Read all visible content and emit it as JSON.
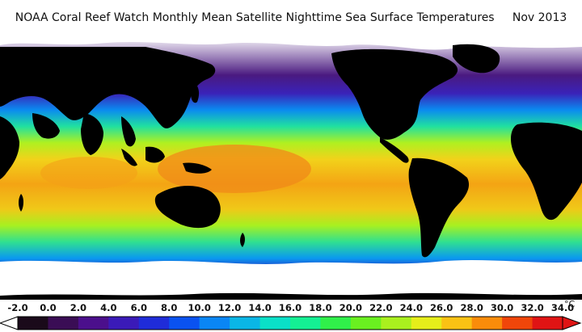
{
  "title": "NOAA Coral Reef Watch Monthly Mean Satellite Nighttime Sea Surface Temperatures     Nov 2013",
  "colorbar": {
    "labels": [
      "-2.0",
      "0.0",
      "2.0",
      "4.0",
      "6.0",
      "8.0",
      "10.0",
      "12.0",
      "14.0",
      "16.0",
      "18.0",
      "20.0",
      "22.0",
      "24.0",
      "26.0",
      "28.0",
      "30.0",
      "32.0",
      "34.0"
    ],
    "unit": "°C",
    "colors": [
      "#ffffff",
      "#1a0a1a",
      "#3a0d55",
      "#4b0f8c",
      "#3a1ab8",
      "#1f2cd9",
      "#0a52f0",
      "#0a86f5",
      "#0ab6e6",
      "#0ae0c8",
      "#14f094",
      "#30f04a",
      "#6af020",
      "#aaf01e",
      "#e6ee1a",
      "#fac214",
      "#fa8c0a",
      "#f0460a",
      "#e01414"
    ],
    "end_left": "#ffffff",
    "end_right": "#e01414"
  },
  "map": {
    "ocean_gradient": [
      {
        "lat": 90,
        "color": "#ffffff"
      },
      {
        "lat": 66,
        "color": "#4a1a80"
      },
      {
        "lat": 55,
        "color": "#3a22b8"
      },
      {
        "lat": 45,
        "color": "#0a8af0"
      },
      {
        "lat": 35,
        "color": "#20e0a0"
      },
      {
        "lat": 25,
        "color": "#b0f020"
      },
      {
        "lat": 15,
        "color": "#f2d21a"
      },
      {
        "lat": 0,
        "color": "#f4a414"
      },
      {
        "lat": -15,
        "color": "#f0c818"
      },
      {
        "lat": -25,
        "color": "#a8f020"
      },
      {
        "lat": -35,
        "color": "#30e090"
      },
      {
        "lat": -45,
        "color": "#0a98f0"
      },
      {
        "lat": -52,
        "color": "#2a2ac0"
      },
      {
        "lat": -60,
        "color": "#3a1266"
      },
      {
        "lat": -66,
        "color": "#ffffff"
      }
    ]
  }
}
